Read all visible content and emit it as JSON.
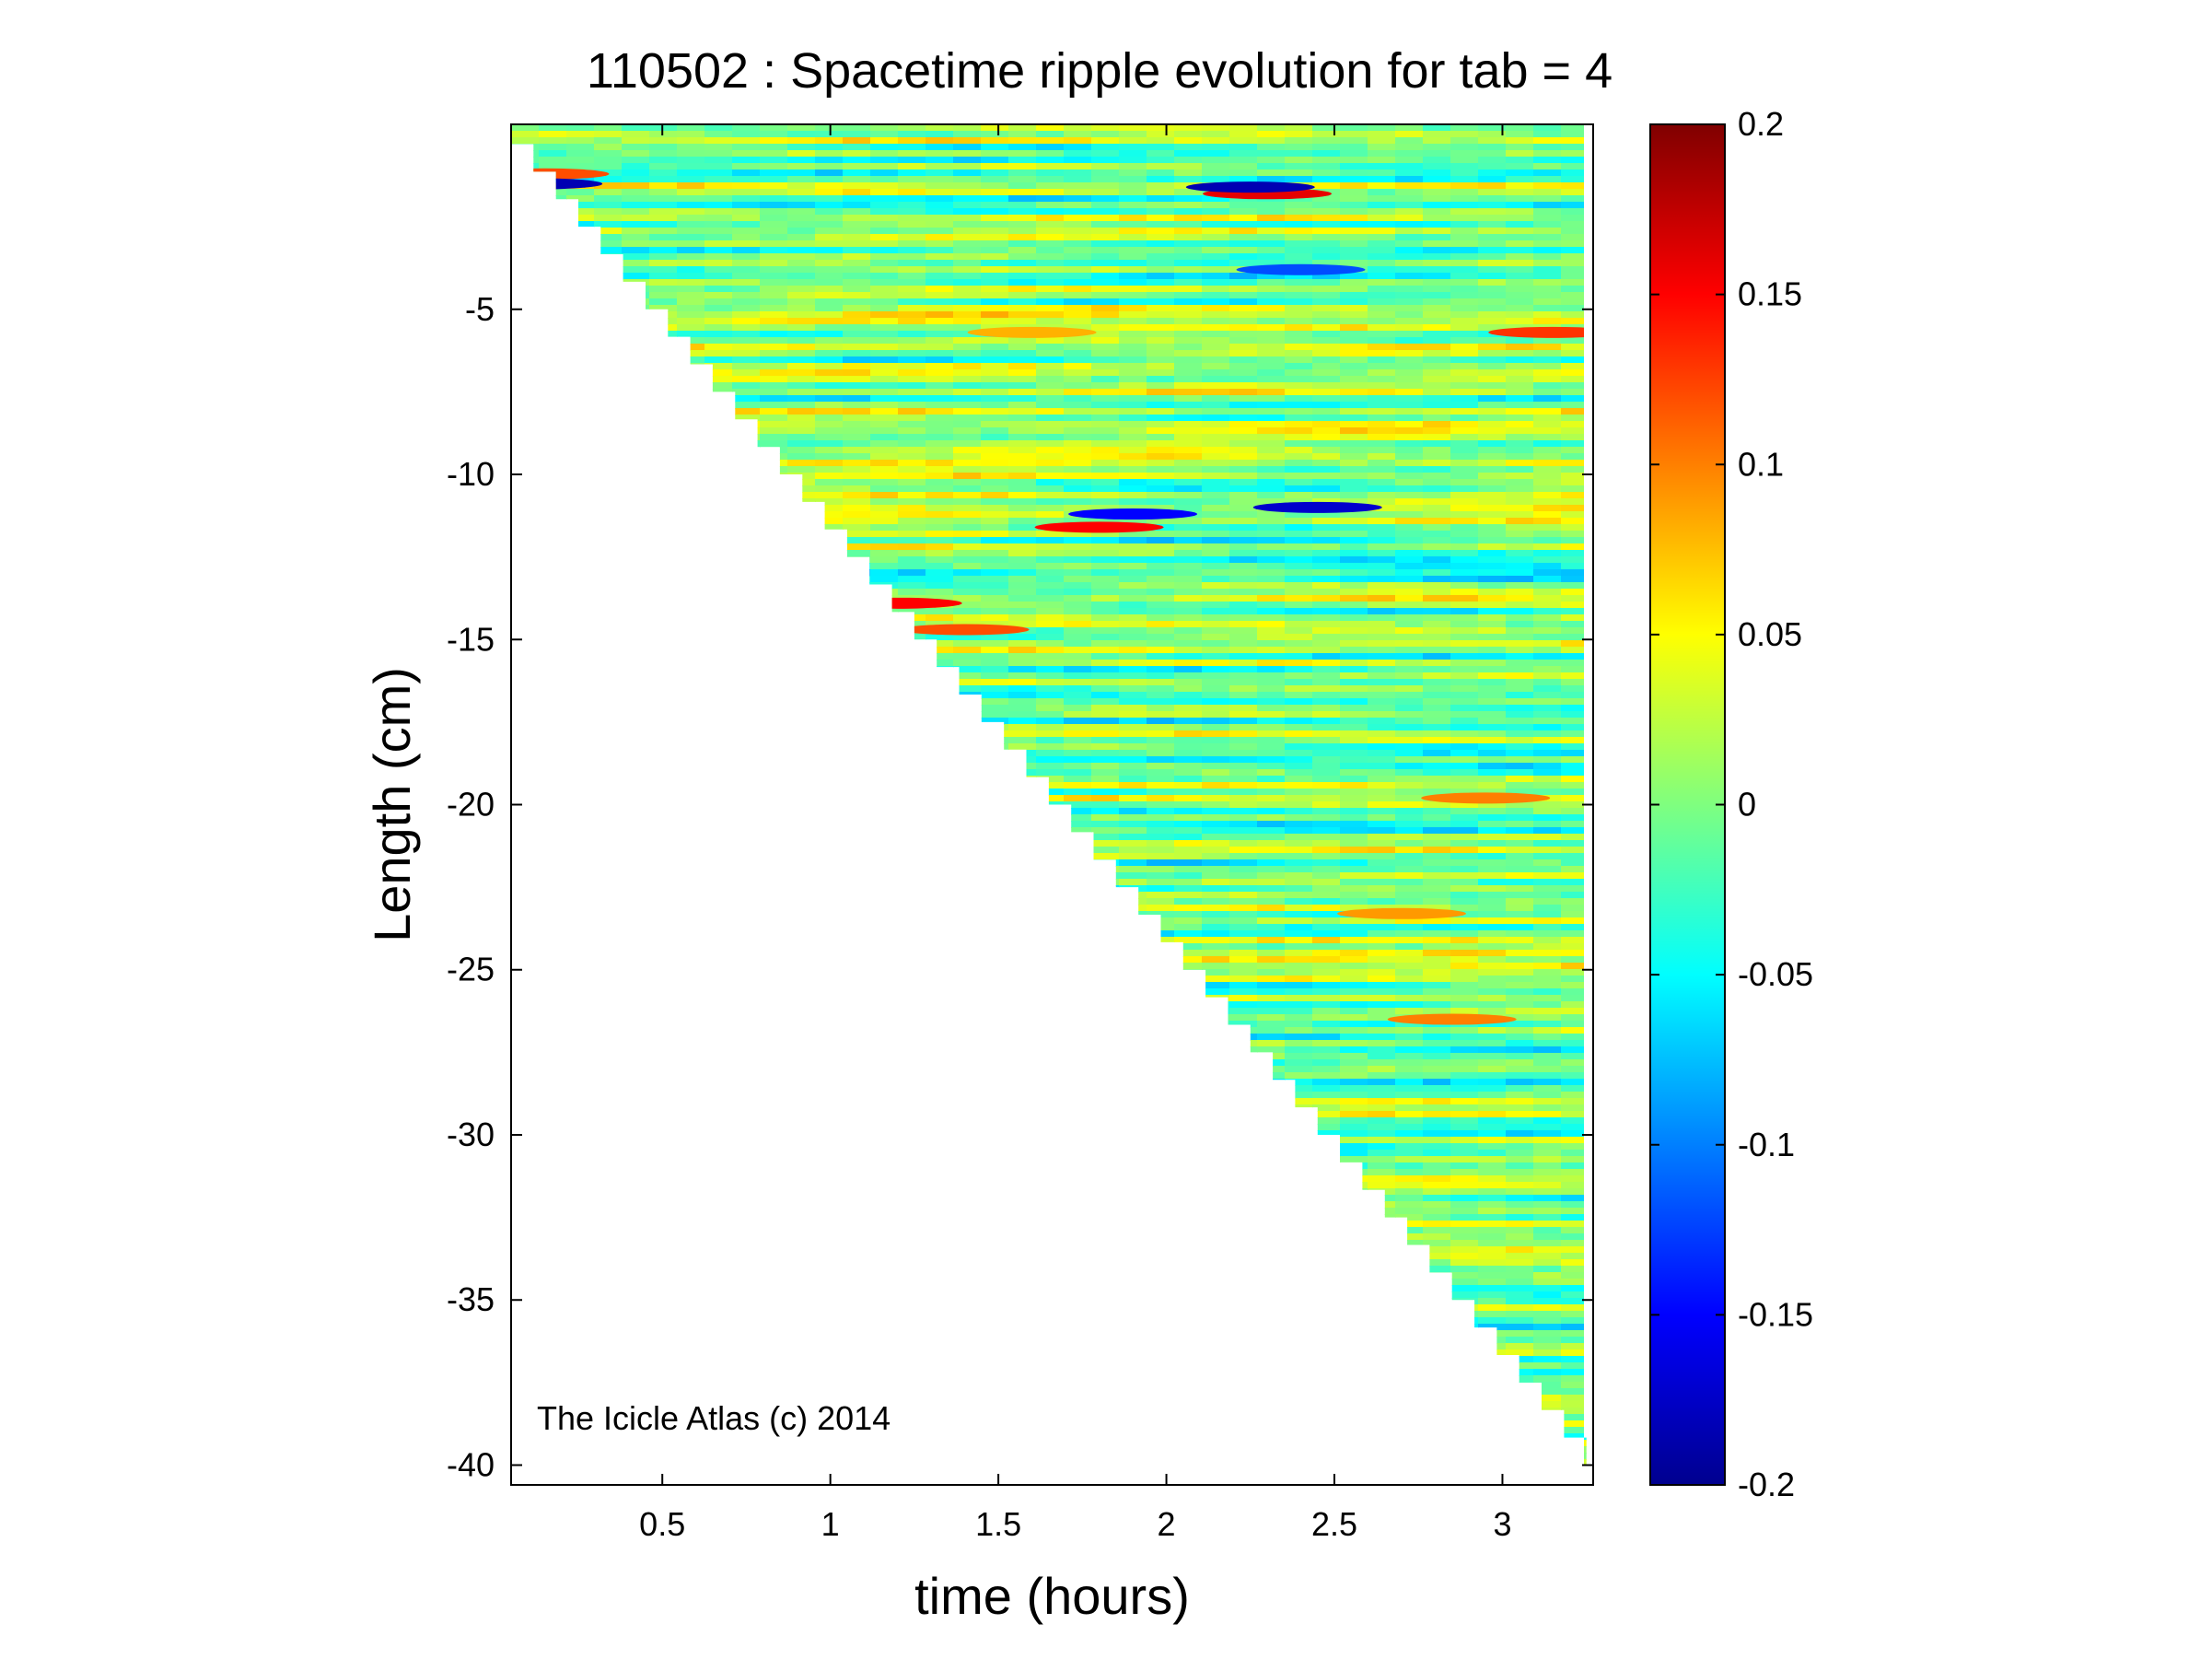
{
  "chart_data": {
    "type": "heatmap",
    "title": "110502 : Spacetime ripple evolution for tab = 4",
    "xlabel": "time (hours)",
    "ylabel": "Length (cm)",
    "xlim": [
      0.05,
      3.27
    ],
    "ylim": [
      -40.6,
      0.6
    ],
    "xticks": [
      0.5,
      1,
      1.5,
      2,
      2.5,
      3
    ],
    "xtick_labels": [
      "0.5",
      "1",
      "1.5",
      "2",
      "2.5",
      "3"
    ],
    "yticks": [
      -5,
      -10,
      -15,
      -20,
      -25,
      -30,
      -35,
      -40
    ],
    "ytick_labels": [
      "-5",
      "-10",
      "-15",
      "-20",
      "-25",
      "-30",
      "-35",
      "-40"
    ],
    "colorbar": {
      "colormap": "jet",
      "clim": [
        -0.2,
        0.2
      ],
      "ticks": [
        0.2,
        0.15,
        0.1,
        0.05,
        0,
        -0.05,
        -0.1,
        -0.15,
        -0.2
      ],
      "tick_labels": [
        "0.2",
        "0.15",
        "0.1",
        "0.05",
        "0",
        "-0.05",
        "-0.1",
        "-0.15",
        "-0.2"
      ]
    },
    "data_region": {
      "description_of_growth_front": "icicle tip length vs time",
      "front_points": [
        {
          "time": 0.05,
          "length": 0.0
        },
        {
          "time": 3.25,
          "length": -40.0
        }
      ]
    },
    "highlights": [
      {
        "time": 2.3,
        "length": -1.5,
        "value": 0.16
      },
      {
        "time": 2.25,
        "length": -1.3,
        "value": -0.18
      },
      {
        "time": 1.8,
        "length": -11.6,
        "value": 0.15
      },
      {
        "time": 1.9,
        "length": -11.2,
        "value": -0.15
      },
      {
        "time": 1.2,
        "length": -13.9,
        "value": 0.15
      },
      {
        "time": 1.4,
        "length": -14.7,
        "value": 0.12
      },
      {
        "time": 2.45,
        "length": -11.0,
        "value": -0.17
      },
      {
        "time": 3.15,
        "length": -5.7,
        "value": 0.13
      },
      {
        "time": 0.15,
        "length": -0.9,
        "value": 0.12
      },
      {
        "time": 0.13,
        "length": -1.2,
        "value": -0.18
      },
      {
        "time": 2.4,
        "length": -3.8,
        "value": -0.12
      },
      {
        "time": 2.95,
        "length": -19.8,
        "value": 0.1
      },
      {
        "time": 2.85,
        "length": -26.5,
        "value": 0.1
      },
      {
        "time": 2.7,
        "length": -23.3,
        "value": 0.09
      },
      {
        "time": 1.6,
        "length": -5.7,
        "value": 0.08
      }
    ]
  },
  "watermark": "The Icicle Atlas (c) 2014"
}
